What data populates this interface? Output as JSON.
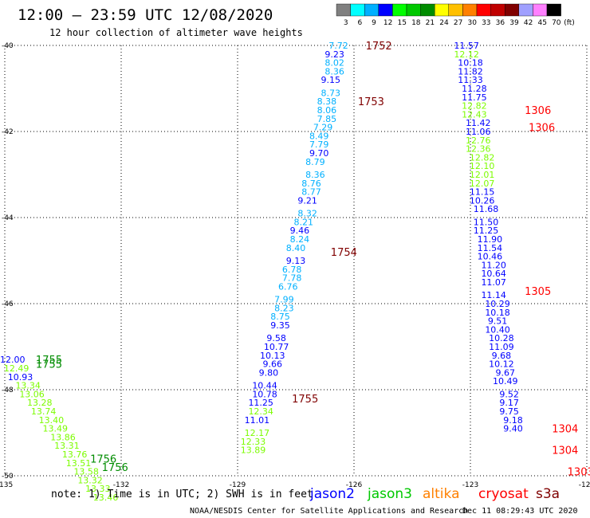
{
  "header": {
    "title": "12:00 – 23:59 UTC 12/08/2020",
    "subtitle": "12 hour collection of altimeter wave heights"
  },
  "colorbar": {
    "colors": [
      "#808080",
      "#00ffff",
      "#00b0ff",
      "#0000ff",
      "#00ff00",
      "#00c800",
      "#008c00",
      "#ffff00",
      "#ffc000",
      "#ff8000",
      "#ff0000",
      "#c00000",
      "#800000",
      "#a0a0ff",
      "#ff80ff",
      "#000000"
    ],
    "labels": [
      "3",
      "6",
      "9",
      "12",
      "15",
      "18",
      "21",
      "24",
      "27",
      "30",
      "33",
      "36",
      "39",
      "42",
      "45",
      "70"
    ],
    "unit": "(ft)"
  },
  "footer": {
    "note": "note:  1) Time is in UTC; 2) SWH is in feet",
    "credit": "NOAA/NESDIS Center for Satellite Applications and Research",
    "timestamp": "Dec 11 08:29:43 UTC 2020"
  },
  "legend": [
    {
      "name": "jason2",
      "color": "#0000ff"
    },
    {
      "name": "jason3",
      "color": "#00c800"
    },
    {
      "name": "altika",
      "color": "#ff8000"
    },
    {
      "name": "cryosat",
      "color": "#ff0000"
    },
    {
      "name": "s3a",
      "color": "#800000"
    }
  ],
  "chart_data": {
    "type": "scatter",
    "xlim": [
      -135,
      -120
    ],
    "ylim": [
      -50,
      -40
    ],
    "x_ticks": [
      "-135",
      "-132",
      "-129",
      "-126",
      "-123",
      "-120"
    ],
    "y_ticks": [
      "-40",
      "-42",
      "-44",
      "-46",
      "-48",
      "-50"
    ],
    "grid": true,
    "tracks": [
      {
        "values": [
          {
            "x": -126.4,
            "y": -40.0,
            "v": "7.72",
            "c": "#00b0ff"
          },
          {
            "x": -126.5,
            "y": -40.2,
            "v": "9.23",
            "c": "#0000ff"
          },
          {
            "x": -126.5,
            "y": -40.4,
            "v": "8.02",
            "c": "#00b0ff"
          },
          {
            "x": -126.5,
            "y": -40.6,
            "v": "8.36",
            "c": "#00b0ff"
          },
          {
            "x": -126.6,
            "y": -40.8,
            "v": "9.15",
            "c": "#0000ff"
          },
          {
            "x": -126.6,
            "y": -41.1,
            "v": "8.73",
            "c": "#00b0ff"
          },
          {
            "x": -126.7,
            "y": -41.3,
            "v": "8.38",
            "c": "#00b0ff"
          },
          {
            "x": -126.7,
            "y": -41.5,
            "v": "8.06",
            "c": "#00b0ff"
          },
          {
            "x": -126.7,
            "y": -41.7,
            "v": "7.85",
            "c": "#00b0ff"
          },
          {
            "x": -126.8,
            "y": -41.9,
            "v": "7.29",
            "c": "#00b0ff"
          },
          {
            "x": -126.9,
            "y": -42.1,
            "v": "8.49",
            "c": "#00b0ff"
          },
          {
            "x": -126.9,
            "y": -42.3,
            "v": "7.79",
            "c": "#00b0ff"
          },
          {
            "x": -126.9,
            "y": -42.5,
            "v": "9.70",
            "c": "#0000ff"
          },
          {
            "x": -127.0,
            "y": -42.7,
            "v": "8.79",
            "c": "#00b0ff"
          },
          {
            "x": -127.0,
            "y": -43.0,
            "v": "8.36",
            "c": "#00b0ff"
          },
          {
            "x": -127.1,
            "y": -43.2,
            "v": "8.76",
            "c": "#00b0ff"
          },
          {
            "x": -127.1,
            "y": -43.4,
            "v": "8.77",
            "c": "#00b0ff"
          },
          {
            "x": -127.2,
            "y": -43.6,
            "v": "9.21",
            "c": "#0000ff"
          },
          {
            "x": -127.2,
            "y": -43.9,
            "v": "8.32",
            "c": "#00b0ff"
          },
          {
            "x": -127.3,
            "y": -44.1,
            "v": "8.21",
            "c": "#00b0ff"
          },
          {
            "x": -127.4,
            "y": -44.3,
            "v": "9.46",
            "c": "#0000ff"
          },
          {
            "x": -127.4,
            "y": -44.5,
            "v": "8.24",
            "c": "#00b0ff"
          },
          {
            "x": -127.5,
            "y": -44.7,
            "v": "8.40",
            "c": "#00b0ff"
          },
          {
            "x": -127.5,
            "y": -45.0,
            "v": "9.13",
            "c": "#0000ff"
          },
          {
            "x": -127.6,
            "y": -45.2,
            "v": "6.78",
            "c": "#00b0ff"
          },
          {
            "x": -127.6,
            "y": -45.4,
            "v": "7.78",
            "c": "#00b0ff"
          },
          {
            "x": -127.7,
            "y": -45.6,
            "v": "6.76",
            "c": "#00b0ff"
          },
          {
            "x": -127.8,
            "y": -45.9,
            "v": "7.99",
            "c": "#00b0ff"
          },
          {
            "x": -127.8,
            "y": -46.1,
            "v": "8.23",
            "c": "#00b0ff"
          },
          {
            "x": -127.9,
            "y": -46.3,
            "v": "8.75",
            "c": "#00b0ff"
          },
          {
            "x": -127.9,
            "y": -46.5,
            "v": "9.35",
            "c": "#0000ff"
          },
          {
            "x": -128.0,
            "y": -46.8,
            "v": "9.58",
            "c": "#0000ff"
          },
          {
            "x": -128.0,
            "y": -47.0,
            "v": "10.77",
            "c": "#0000ff"
          },
          {
            "x": -128.1,
            "y": -47.2,
            "v": "10.13",
            "c": "#0000ff"
          },
          {
            "x": -128.1,
            "y": -47.4,
            "v": "9.66",
            "c": "#0000ff"
          },
          {
            "x": -128.2,
            "y": -47.6,
            "v": "9.80",
            "c": "#0000ff"
          },
          {
            "x": -128.3,
            "y": -47.9,
            "v": "10.44",
            "c": "#0000ff"
          },
          {
            "x": -128.3,
            "y": -48.1,
            "v": "10.78",
            "c": "#0000ff"
          },
          {
            "x": -128.4,
            "y": -48.3,
            "v": "11.25",
            "c": "#0000ff"
          },
          {
            "x": -128.4,
            "y": -48.5,
            "v": "12.34",
            "c": "#7cfc00"
          },
          {
            "x": -128.5,
            "y": -48.7,
            "v": "11.01",
            "c": "#0000ff"
          },
          {
            "x": -128.5,
            "y": -49.0,
            "v": "12.17",
            "c": "#7cfc00"
          },
          {
            "x": -128.6,
            "y": -49.2,
            "v": "12.33",
            "c": "#7cfc00"
          },
          {
            "x": -128.6,
            "y": -49.4,
            "v": "13.89",
            "c": "#7cfc00"
          }
        ]
      },
      {
        "values": [
          {
            "x": -123.1,
            "y": -40.0,
            "v": "11.57",
            "c": "#0000ff"
          },
          {
            "x": -123.1,
            "y": -40.2,
            "v": "12.12",
            "c": "#7cfc00"
          },
          {
            "x": -123.0,
            "y": -40.4,
            "v": "10.18",
            "c": "#0000ff"
          },
          {
            "x": -123.0,
            "y": -40.6,
            "v": "11.82",
            "c": "#0000ff"
          },
          {
            "x": -123.0,
            "y": -40.8,
            "v": "11.33",
            "c": "#0000ff"
          },
          {
            "x": -122.9,
            "y": -41.0,
            "v": "11.28",
            "c": "#0000ff"
          },
          {
            "x": -122.9,
            "y": -41.2,
            "v": "11.75",
            "c": "#0000ff"
          },
          {
            "x": -122.9,
            "y": -41.4,
            "v": "12.82",
            "c": "#7cfc00"
          },
          {
            "x": -122.9,
            "y": -41.6,
            "v": "12.43",
            "c": "#7cfc00"
          },
          {
            "x": -122.8,
            "y": -41.8,
            "v": "11.42",
            "c": "#0000ff"
          },
          {
            "x": -122.8,
            "y": -42.0,
            "v": "11.06",
            "c": "#0000ff"
          },
          {
            "x": -122.8,
            "y": -42.2,
            "v": "12.76",
            "c": "#7cfc00"
          },
          {
            "x": -122.8,
            "y": -42.4,
            "v": "12.36",
            "c": "#7cfc00"
          },
          {
            "x": -122.7,
            "y": -42.6,
            "v": "12.82",
            "c": "#7cfc00"
          },
          {
            "x": -122.7,
            "y": -42.8,
            "v": "12.10",
            "c": "#7cfc00"
          },
          {
            "x": -122.7,
            "y": -43.0,
            "v": "12.01",
            "c": "#7cfc00"
          },
          {
            "x": -122.7,
            "y": -43.2,
            "v": "12.07",
            "c": "#7cfc00"
          },
          {
            "x": -122.7,
            "y": -43.4,
            "v": "11.15",
            "c": "#0000ff"
          },
          {
            "x": -122.7,
            "y": -43.6,
            "v": "10.26",
            "c": "#0000ff"
          },
          {
            "x": -122.6,
            "y": -43.8,
            "v": "11.68",
            "c": "#0000ff"
          },
          {
            "x": -122.6,
            "y": -44.1,
            "v": "11.50",
            "c": "#0000ff"
          },
          {
            "x": -122.6,
            "y": -44.3,
            "v": "11.25",
            "c": "#0000ff"
          },
          {
            "x": -122.5,
            "y": -44.5,
            "v": "11.90",
            "c": "#0000ff"
          },
          {
            "x": -122.5,
            "y": -44.7,
            "v": "11.54",
            "c": "#0000ff"
          },
          {
            "x": -122.5,
            "y": -44.9,
            "v": "10.46",
            "c": "#0000ff"
          },
          {
            "x": -122.4,
            "y": -45.1,
            "v": "11.20",
            "c": "#0000ff"
          },
          {
            "x": -122.4,
            "y": -45.3,
            "v": "10.64",
            "c": "#0000ff"
          },
          {
            "x": -122.4,
            "y": -45.5,
            "v": "11.07",
            "c": "#0000ff"
          },
          {
            "x": -122.4,
            "y": -45.8,
            "v": "11.14",
            "c": "#0000ff"
          },
          {
            "x": -122.3,
            "y": -46.0,
            "v": "10.29",
            "c": "#0000ff"
          },
          {
            "x": -122.3,
            "y": -46.2,
            "v": "10.18",
            "c": "#0000ff"
          },
          {
            "x": -122.3,
            "y": -46.4,
            "v": "9.51",
            "c": "#0000ff"
          },
          {
            "x": -122.3,
            "y": -46.6,
            "v": "10.40",
            "c": "#0000ff"
          },
          {
            "x": -122.2,
            "y": -46.8,
            "v": "10.28",
            "c": "#0000ff"
          },
          {
            "x": -122.2,
            "y": -47.0,
            "v": "11.09",
            "c": "#0000ff"
          },
          {
            "x": -122.2,
            "y": -47.2,
            "v": "9.68",
            "c": "#0000ff"
          },
          {
            "x": -122.2,
            "y": -47.4,
            "v": "10.12",
            "c": "#0000ff"
          },
          {
            "x": -122.1,
            "y": -47.6,
            "v": "9.67",
            "c": "#0000ff"
          },
          {
            "x": -122.1,
            "y": -47.8,
            "v": "10.49",
            "c": "#0000ff"
          },
          {
            "x": -122.0,
            "y": -48.1,
            "v": "9.52",
            "c": "#0000ff"
          },
          {
            "x": -122.0,
            "y": -48.3,
            "v": "9.17",
            "c": "#0000ff"
          },
          {
            "x": -122.0,
            "y": -48.5,
            "v": "9.75",
            "c": "#0000ff"
          },
          {
            "x": -121.9,
            "y": -48.7,
            "v": "9.18",
            "c": "#0000ff"
          },
          {
            "x": -121.9,
            "y": -48.9,
            "v": "9.40",
            "c": "#0000ff"
          }
        ]
      },
      {
        "values": [
          {
            "x": -134.8,
            "y": -47.3,
            "v": "12.00",
            "c": "#0000ff"
          },
          {
            "x": -134.7,
            "y": -47.5,
            "v": "12.49",
            "c": "#7cfc00"
          },
          {
            "x": -134.6,
            "y": -47.7,
            "v": "10.93",
            "c": "#0000ff"
          },
          {
            "x": -134.4,
            "y": -47.9,
            "v": "13.34",
            "c": "#7cfc00"
          },
          {
            "x": -134.3,
            "y": -48.1,
            "v": "13.06",
            "c": "#7cfc00"
          },
          {
            "x": -134.1,
            "y": -48.3,
            "v": "13.28",
            "c": "#7cfc00"
          },
          {
            "x": -134.0,
            "y": -48.5,
            "v": "13.74",
            "c": "#7cfc00"
          },
          {
            "x": -133.8,
            "y": -48.7,
            "v": "13.40",
            "c": "#7cfc00"
          },
          {
            "x": -133.7,
            "y": -48.9,
            "v": "13.49",
            "c": "#7cfc00"
          },
          {
            "x": -133.5,
            "y": -49.1,
            "v": "13.86",
            "c": "#7cfc00"
          },
          {
            "x": -133.4,
            "y": -49.3,
            "v": "13.31",
            "c": "#7cfc00"
          },
          {
            "x": -133.2,
            "y": -49.5,
            "v": "13.76",
            "c": "#7cfc00"
          },
          {
            "x": -133.1,
            "y": -49.7,
            "v": "13.51",
            "c": "#7cfc00"
          },
          {
            "x": -132.9,
            "y": -49.9,
            "v": "13.58",
            "c": "#7cfc00"
          },
          {
            "x": -132.8,
            "y": -50.1,
            "v": "13.32",
            "c": "#7cfc00"
          },
          {
            "x": -132.6,
            "y": -50.3,
            "v": "13.33",
            "c": "#7cfc00"
          },
          {
            "x": -132.4,
            "y": -50.5,
            "v": "13.46",
            "c": "#7cfc00"
          }
        ]
      }
    ],
    "time_labels": [
      {
        "x": -125.7,
        "y": -40.0,
        "t": "1752",
        "c": "#800000"
      },
      {
        "x": -125.9,
        "y": -41.3,
        "t": "1753",
        "c": "#800000"
      },
      {
        "x": -126.6,
        "y": -44.8,
        "t": "1754",
        "c": "#800000"
      },
      {
        "x": -127.6,
        "y": -48.2,
        "t": "1755",
        "c": "#800000"
      },
      {
        "x": -121.6,
        "y": -41.5,
        "t": "1306",
        "c": "#ff0000"
      },
      {
        "x": -121.5,
        "y": -41.9,
        "t": "1306",
        "c": "#ff0000"
      },
      {
        "x": -121.6,
        "y": -45.7,
        "t": "1305",
        "c": "#ff0000"
      },
      {
        "x": -120.9,
        "y": -48.9,
        "t": "1304",
        "c": "#ff0000"
      },
      {
        "x": -120.9,
        "y": -49.4,
        "t": "1304",
        "c": "#ff0000"
      },
      {
        "x": -120.5,
        "y": -49.9,
        "t": "1303",
        "c": "#ff0000"
      },
      {
        "x": -134.2,
        "y": -47.3,
        "t": "1755",
        "c": "#008c00"
      },
      {
        "x": -134.2,
        "y": -47.4,
        "t": "1755",
        "c": "#008c00"
      },
      {
        "x": -132.8,
        "y": -49.6,
        "t": "1756",
        "c": "#008c00"
      },
      {
        "x": -132.5,
        "y": -49.8,
        "t": "1756",
        "c": "#008c00"
      }
    ]
  }
}
